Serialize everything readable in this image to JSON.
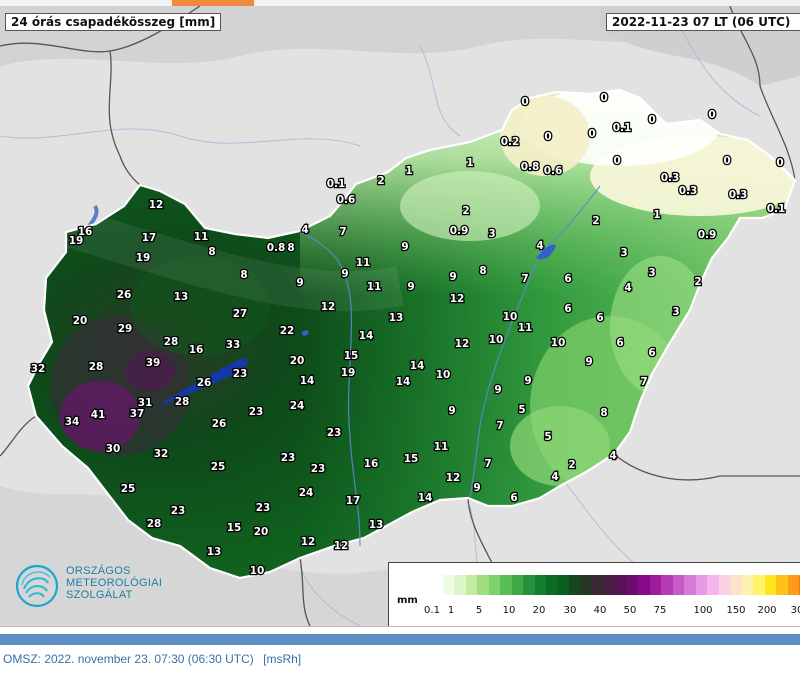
{
  "map": {
    "title": "24 órás csapadékösszeg [mm]",
    "datetime": "2022-11-23 07 LT  (06 UTC)",
    "stations": [
      {
        "v": "0",
        "lx": 525,
        "ly": 101
      },
      {
        "v": "0",
        "lx": 604,
        "ly": 97
      },
      {
        "v": "0",
        "lx": 548,
        "ly": 136
      },
      {
        "v": "0",
        "lx": 592,
        "ly": 133
      },
      {
        "v": "0.1",
        "lx": 622,
        "ly": 127
      },
      {
        "v": "0",
        "lx": 652,
        "ly": 119
      },
      {
        "v": "0",
        "lx": 712,
        "ly": 114
      },
      {
        "v": "0.2",
        "lx": 510,
        "ly": 141
      },
      {
        "v": "0.8",
        "lx": 530,
        "ly": 166
      },
      {
        "v": "0.6",
        "lx": 553,
        "ly": 170
      },
      {
        "v": "0",
        "lx": 617,
        "ly": 160
      },
      {
        "v": "0",
        "lx": 727,
        "ly": 160
      },
      {
        "v": "0",
        "lx": 780,
        "ly": 162
      },
      {
        "v": "0.3",
        "lx": 670,
        "ly": 177
      },
      {
        "v": "0.3",
        "lx": 688,
        "ly": 190
      },
      {
        "v": "0.3",
        "lx": 738,
        "ly": 194
      },
      {
        "v": "0.1",
        "lx": 776,
        "ly": 208
      },
      {
        "v": "1",
        "lx": 470,
        "ly": 162
      },
      {
        "v": "1",
        "lx": 409,
        "ly": 170
      },
      {
        "v": "2",
        "lx": 381,
        "ly": 180
      },
      {
        "v": "0.1",
        "lx": 336,
        "ly": 183
      },
      {
        "v": "0.6",
        "lx": 346,
        "ly": 199
      },
      {
        "v": "2",
        "lx": 466,
        "ly": 210
      },
      {
        "v": "0.9",
        "lx": 459,
        "ly": 230
      },
      {
        "v": "3",
        "lx": 492,
        "ly": 233
      },
      {
        "v": "2",
        "lx": 596,
        "ly": 220
      },
      {
        "v": "1",
        "lx": 657,
        "ly": 214
      },
      {
        "v": "0.9",
        "lx": 707,
        "ly": 234
      },
      {
        "v": "4",
        "lx": 540,
        "ly": 245
      },
      {
        "v": "3",
        "lx": 624,
        "ly": 252
      },
      {
        "v": "3",
        "lx": 652,
        "ly": 272
      },
      {
        "v": "2",
        "lx": 698,
        "ly": 281
      },
      {
        "v": "4",
        "lx": 628,
        "ly": 287
      },
      {
        "v": "6",
        "lx": 568,
        "ly": 278
      },
      {
        "v": "7",
        "lx": 525,
        "ly": 278
      },
      {
        "v": "8",
        "lx": 483,
        "ly": 270
      },
      {
        "v": "9",
        "lx": 453,
        "ly": 276
      },
      {
        "v": "9",
        "lx": 405,
        "ly": 246
      },
      {
        "v": "7",
        "lx": 343,
        "ly": 231
      },
      {
        "v": "4",
        "lx": 305,
        "ly": 229
      },
      {
        "v": "11",
        "lx": 363,
        "ly": 262
      },
      {
        "v": "9",
        "lx": 345,
        "ly": 273
      },
      {
        "v": "11",
        "lx": 374,
        "ly": 286
      },
      {
        "v": "9",
        "lx": 411,
        "ly": 286
      },
      {
        "v": "12",
        "lx": 457,
        "ly": 298
      },
      {
        "v": "10",
        "lx": 510,
        "ly": 316
      },
      {
        "v": "11",
        "lx": 525,
        "ly": 327
      },
      {
        "v": "6",
        "lx": 568,
        "ly": 308
      },
      {
        "v": "6",
        "lx": 600,
        "ly": 317
      },
      {
        "v": "3",
        "lx": 676,
        "ly": 311
      },
      {
        "v": "6",
        "lx": 620,
        "ly": 342
      },
      {
        "v": "6",
        "lx": 652,
        "ly": 352
      },
      {
        "v": "10",
        "lx": 558,
        "ly": 342
      },
      {
        "v": "10",
        "lx": 496,
        "ly": 339
      },
      {
        "v": "12",
        "lx": 462,
        "ly": 343
      },
      {
        "v": "13",
        "lx": 396,
        "ly": 317
      },
      {
        "v": "14",
        "lx": 366,
        "ly": 335
      },
      {
        "v": "15",
        "lx": 351,
        "ly": 355
      },
      {
        "v": "19",
        "lx": 348,
        "ly": 372
      },
      {
        "v": "14",
        "lx": 417,
        "ly": 365
      },
      {
        "v": "14",
        "lx": 403,
        "ly": 381
      },
      {
        "v": "10",
        "lx": 443,
        "ly": 374
      },
      {
        "v": "9",
        "lx": 498,
        "ly": 389
      },
      {
        "v": "9",
        "lx": 528,
        "ly": 380
      },
      {
        "v": "9",
        "lx": 589,
        "ly": 361
      },
      {
        "v": "7",
        "lx": 644,
        "ly": 381
      },
      {
        "v": "12",
        "lx": 156,
        "ly": 204
      },
      {
        "v": "16",
        "lx": 85,
        "ly": 231
      },
      {
        "v": "19",
        "lx": 76,
        "ly": 240
      },
      {
        "v": "17",
        "lx": 149,
        "ly": 237
      },
      {
        "v": "11",
        "lx": 201,
        "ly": 236
      },
      {
        "v": "8",
        "lx": 212,
        "ly": 251
      },
      {
        "v": "0.8",
        "lx": 276,
        "ly": 247
      },
      {
        "v": "8",
        "lx": 291,
        "ly": 247
      },
      {
        "v": "19",
        "lx": 143,
        "ly": 257
      },
      {
        "v": "8",
        "lx": 244,
        "ly": 274
      },
      {
        "v": "9",
        "lx": 300,
        "ly": 282
      },
      {
        "v": "26",
        "lx": 124,
        "ly": 294
      },
      {
        "v": "13",
        "lx": 181,
        "ly": 296
      },
      {
        "v": "12",
        "lx": 328,
        "ly": 306
      },
      {
        "v": "27",
        "lx": 240,
        "ly": 313
      },
      {
        "v": "20",
        "lx": 80,
        "ly": 320
      },
      {
        "v": "29",
        "lx": 125,
        "ly": 328
      },
      {
        "v": "22",
        "lx": 287,
        "ly": 330
      },
      {
        "v": "28",
        "lx": 171,
        "ly": 341
      },
      {
        "v": "33",
        "lx": 233,
        "ly": 344
      },
      {
        "v": "16",
        "lx": 196,
        "ly": 349
      },
      {
        "v": "20",
        "lx": 297,
        "ly": 360
      },
      {
        "v": "32",
        "lx": 38,
        "ly": 368
      },
      {
        "v": "28",
        "lx": 96,
        "ly": 366
      },
      {
        "v": "39",
        "lx": 153,
        "ly": 362
      },
      {
        "v": "23",
        "lx": 240,
        "ly": 373
      },
      {
        "v": "14",
        "lx": 307,
        "ly": 380
      },
      {
        "v": "26",
        "lx": 204,
        "ly": 382
      },
      {
        "v": "31",
        "lx": 145,
        "ly": 402
      },
      {
        "v": "37",
        "lx": 137,
        "ly": 413
      },
      {
        "v": "28",
        "lx": 182,
        "ly": 401
      },
      {
        "v": "24",
        "lx": 297,
        "ly": 405
      },
      {
        "v": "23",
        "lx": 256,
        "ly": 411
      },
      {
        "v": "41",
        "lx": 98,
        "ly": 414
      },
      {
        "v": "34",
        "lx": 72,
        "ly": 421
      },
      {
        "v": "26",
        "lx": 219,
        "ly": 423
      },
      {
        "v": "23",
        "lx": 334,
        "ly": 432
      },
      {
        "v": "30",
        "lx": 113,
        "ly": 448
      },
      {
        "v": "32",
        "lx": 161,
        "ly": 453
      },
      {
        "v": "23",
        "lx": 288,
        "ly": 457
      },
      {
        "v": "23",
        "lx": 318,
        "ly": 468
      },
      {
        "v": "25",
        "lx": 218,
        "ly": 466
      },
      {
        "v": "25",
        "lx": 128,
        "ly": 488
      },
      {
        "v": "24",
        "lx": 306,
        "ly": 492
      },
      {
        "v": "23",
        "lx": 178,
        "ly": 510
      },
      {
        "v": "23",
        "lx": 263,
        "ly": 507
      },
      {
        "v": "28",
        "lx": 154,
        "ly": 523
      },
      {
        "v": "15",
        "lx": 234,
        "ly": 527
      },
      {
        "v": "20",
        "lx": 261,
        "ly": 531
      },
      {
        "v": "13",
        "lx": 214,
        "ly": 551
      },
      {
        "v": "12",
        "lx": 308,
        "ly": 541
      },
      {
        "v": "12",
        "lx": 341,
        "ly": 545
      },
      {
        "v": "10",
        "lx": 257,
        "ly": 570
      },
      {
        "v": "13",
        "lx": 376,
        "ly": 524
      },
      {
        "v": "17",
        "lx": 353,
        "ly": 500
      },
      {
        "v": "16",
        "lx": 371,
        "ly": 463
      },
      {
        "v": "15",
        "lx": 411,
        "ly": 458
      },
      {
        "v": "11",
        "lx": 441,
        "ly": 446
      },
      {
        "v": "9",
        "lx": 452,
        "ly": 410
      },
      {
        "v": "14",
        "lx": 425,
        "ly": 497
      },
      {
        "v": "12",
        "lx": 453,
        "ly": 477
      },
      {
        "v": "9",
        "lx": 477,
        "ly": 487
      },
      {
        "v": "7",
        "lx": 488,
        "ly": 463
      },
      {
        "v": "6",
        "lx": 514,
        "ly": 497
      },
      {
        "v": "7",
        "lx": 500,
        "ly": 425
      },
      {
        "v": "5",
        "lx": 522,
        "ly": 409
      },
      {
        "v": "5",
        "lx": 548,
        "ly": 436
      },
      {
        "v": "8",
        "lx": 604,
        "ly": 412
      },
      {
        "v": "4",
        "lx": 555,
        "ly": 476
      },
      {
        "v": "2",
        "lx": 572,
        "ly": 464
      },
      {
        "v": "4",
        "lx": 613,
        "ly": 455
      }
    ]
  },
  "legend": {
    "unit": "mm",
    "ticks": [
      "0.1",
      "1",
      "5",
      "10",
      "20",
      "30",
      "40",
      "50",
      "75",
      "100",
      "150",
      "200",
      "30"
    ],
    "colors": [
      "#ffffff",
      "#f0fbe6",
      "#ddf5c8",
      "#c2eba4",
      "#a0de80",
      "#7fd06a",
      "#5bbd55",
      "#3da845",
      "#24923a",
      "#147d2e",
      "#0b6b24",
      "#0b5e20",
      "#17461f",
      "#2a3524",
      "#3a2b33",
      "#4a1e44",
      "#5a1257",
      "#6e0b6e",
      "#860a86",
      "#9e1b9e",
      "#b43cb4",
      "#c65ac6",
      "#d77bd7",
      "#e89ae8",
      "#f5b6f0",
      "#fbd0e6",
      "#fde2c9",
      "#fff2b0",
      "#fff36a",
      "#ffe51c",
      "#ffc21a",
      "#ff9b18",
      "#ff7216",
      "#ff4a12"
    ]
  },
  "logo": {
    "line1": "ORSZÁGOS",
    "line2": "METEOROLÓGIAI",
    "line3": "SZOLGÁLAT"
  },
  "footer": {
    "text": "OMSZ: 2022. november 23. 07:30 (06:30  UTC)",
    "unit": "[msRh]"
  },
  "colors": {
    "deep_green": "#0d5a1f",
    "mid_green": "#2f9a3e",
    "light_green": "#a6df88",
    "purple": "#5d1a5e"
  }
}
